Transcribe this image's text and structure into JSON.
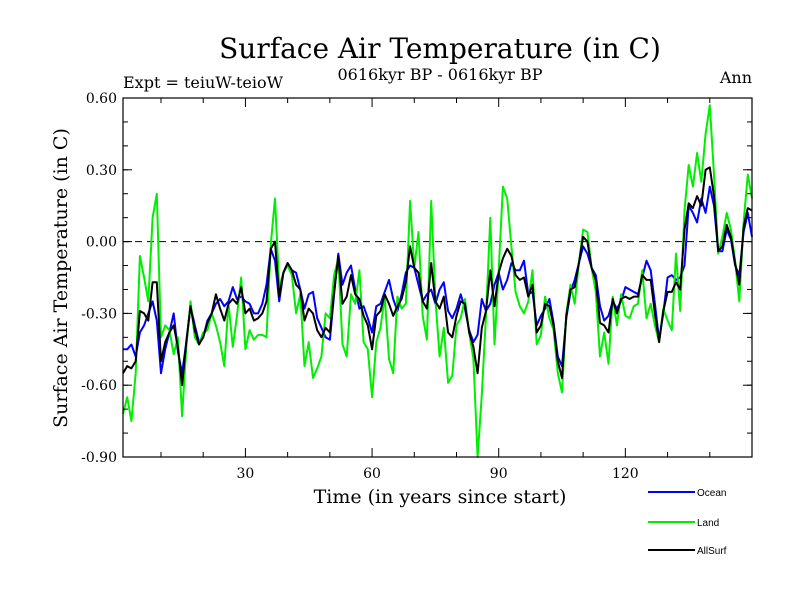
{
  "chart_data": {
    "type": "line",
    "title": "Surface Air Temperature (in C)",
    "subtitle_left": "Expt = teiuW-teioW",
    "subtitle_center": "0616kyr BP - 0616kyr BP",
    "subtitle_right": "Ann",
    "xlabel": "Time (in years since start)",
    "ylabel": "Surface Air Temperature (in C)",
    "xlim": [
      1,
      150
    ],
    "ylim": [
      -0.9,
      0.6
    ],
    "xticks": [
      30,
      60,
      90,
      120
    ],
    "yticks": [
      -0.9,
      -0.6,
      -0.3,
      0.0,
      0.3,
      0.6
    ],
    "ytick_labels": [
      "-0.90",
      "-0.60",
      "-0.30",
      "0.00",
      "0.30",
      "0.60"
    ],
    "reference_line": 0.0,
    "x": [
      1,
      2,
      3,
      4,
      5,
      6,
      7,
      8,
      9,
      10,
      11,
      12,
      13,
      14,
      15,
      16,
      17,
      18,
      19,
      20,
      21,
      22,
      23,
      24,
      25,
      26,
      27,
      28,
      29,
      30,
      31,
      32,
      33,
      34,
      35,
      36,
      37,
      38,
      39,
      40,
      41,
      42,
      43,
      44,
      45,
      46,
      47,
      48,
      49,
      50,
      51,
      52,
      53,
      54,
      55,
      56,
      57,
      58,
      59,
      60,
      61,
      62,
      63,
      64,
      65,
      66,
      67,
      68,
      69,
      70,
      71,
      72,
      73,
      74,
      75,
      76,
      77,
      78,
      79,
      80,
      81,
      82,
      83,
      84,
      85,
      86,
      87,
      88,
      89,
      90,
      91,
      92,
      93,
      94,
      95,
      96,
      97,
      98,
      99,
      100,
      101,
      102,
      103,
      104,
      105,
      106,
      107,
      108,
      109,
      110,
      111,
      112,
      113,
      114,
      115,
      116,
      117,
      118,
      119,
      120,
      121,
      122,
      123,
      124,
      125,
      126,
      127,
      128,
      129,
      130,
      131,
      132,
      133,
      134,
      135,
      136,
      137,
      138,
      139,
      140,
      141,
      142,
      143,
      144,
      145,
      146,
      147,
      148,
      149,
      150
    ],
    "series": [
      {
        "name": "Ocean",
        "color": "#0000ff",
        "values": [
          -0.45,
          -0.45,
          -0.43,
          -0.48,
          -0.38,
          -0.35,
          -0.3,
          -0.25,
          -0.33,
          -0.55,
          -0.45,
          -0.38,
          -0.3,
          -0.46,
          -0.55,
          -0.42,
          -0.27,
          -0.35,
          -0.42,
          -0.4,
          -0.33,
          -0.3,
          -0.26,
          -0.24,
          -0.27,
          -0.25,
          -0.19,
          -0.24,
          -0.23,
          -0.25,
          -0.26,
          -0.3,
          -0.3,
          -0.26,
          -0.18,
          -0.03,
          -0.08,
          -0.25,
          -0.13,
          -0.09,
          -0.12,
          -0.13,
          -0.2,
          -0.28,
          -0.22,
          -0.21,
          -0.32,
          -0.36,
          -0.4,
          -0.41,
          -0.22,
          -0.05,
          -0.18,
          -0.13,
          -0.1,
          -0.2,
          -0.28,
          -0.27,
          -0.32,
          -0.38,
          -0.27,
          -0.26,
          -0.21,
          -0.16,
          -0.24,
          -0.29,
          -0.22,
          -0.13,
          -0.1,
          -0.11,
          -0.18,
          -0.25,
          -0.22,
          -0.2,
          -0.26,
          -0.2,
          -0.17,
          -0.29,
          -0.32,
          -0.28,
          -0.22,
          -0.28,
          -0.37,
          -0.42,
          -0.39,
          -0.24,
          -0.29,
          -0.26,
          -0.18,
          -0.13,
          -0.2,
          -0.16,
          -0.09,
          -0.12,
          -0.12,
          -0.08,
          -0.22,
          -0.21,
          -0.35,
          -0.31,
          -0.28,
          -0.24,
          -0.34,
          -0.48,
          -0.52,
          -0.32,
          -0.21,
          -0.16,
          -0.09,
          -0.02,
          -0.05,
          -0.11,
          -0.14,
          -0.27,
          -0.33,
          -0.31,
          -0.25,
          -0.28,
          -0.25,
          -0.19,
          -0.2,
          -0.21,
          -0.22,
          -0.15,
          -0.08,
          -0.12,
          -0.26,
          -0.41,
          -0.3,
          -0.15,
          -0.14,
          -0.16,
          -0.15,
          -0.1,
          0.15,
          0.12,
          0.08,
          0.18,
          0.12,
          0.23,
          0.15,
          -0.04,
          -0.04,
          0.05,
          0.01,
          -0.1,
          -0.14,
          0.04,
          0.12,
          0.02
        ]
      },
      {
        "name": "Land",
        "color": "#00ee00",
        "values": [
          -0.72,
          -0.65,
          -0.75,
          -0.55,
          -0.06,
          -0.15,
          -0.25,
          0.1,
          0.2,
          -0.4,
          -0.35,
          -0.37,
          -0.47,
          -0.4,
          -0.73,
          -0.44,
          -0.25,
          -0.4,
          -0.43,
          -0.38,
          -0.37,
          -0.3,
          -0.35,
          -0.42,
          -0.52,
          -0.26,
          -0.44,
          -0.31,
          -0.15,
          -0.45,
          -0.37,
          -0.41,
          -0.39,
          -0.39,
          -0.4,
          -0.01,
          0.18,
          -0.19,
          -0.13,
          -0.1,
          -0.14,
          -0.3,
          -0.22,
          -0.52,
          -0.42,
          -0.57,
          -0.53,
          -0.48,
          -0.3,
          -0.32,
          -0.14,
          -0.07,
          -0.43,
          -0.48,
          -0.22,
          -0.26,
          -0.12,
          -0.42,
          -0.45,
          -0.65,
          -0.42,
          -0.36,
          -0.23,
          -0.49,
          -0.55,
          -0.23,
          -0.28,
          -0.26,
          0.17,
          -0.11,
          0.04,
          -0.31,
          -0.41,
          0.17,
          -0.24,
          -0.48,
          -0.36,
          -0.59,
          -0.56,
          -0.35,
          -0.32,
          -0.24,
          -0.38,
          -0.49,
          -0.9,
          -0.64,
          -0.31,
          0.1,
          -0.43,
          -0.12,
          0.23,
          0.18,
          -0.02,
          -0.21,
          -0.27,
          -0.3,
          -0.25,
          -0.12,
          -0.43,
          -0.39,
          -0.23,
          -0.32,
          -0.37,
          -0.55,
          -0.63,
          -0.3,
          -0.18,
          -0.26,
          -0.09,
          0.05,
          0.04,
          -0.11,
          -0.21,
          -0.48,
          -0.38,
          -0.51,
          -0.23,
          -0.35,
          -0.22,
          -0.31,
          -0.32,
          -0.27,
          -0.26,
          -0.12,
          -0.32,
          -0.26,
          -0.35,
          -0.42,
          -0.28,
          -0.33,
          -0.37,
          -0.05,
          -0.29,
          0.13,
          0.32,
          0.23,
          0.37,
          0.25,
          0.45,
          0.57,
          0.28,
          -0.05,
          0.02,
          0.12,
          0.05,
          -0.08,
          -0.25,
          0.08,
          0.28,
          0.18
        ]
      },
      {
        "name": "AllSurf",
        "color": "#000000",
        "values": [
          -0.55,
          -0.52,
          -0.53,
          -0.5,
          -0.29,
          -0.3,
          -0.33,
          -0.17,
          -0.17,
          -0.5,
          -0.42,
          -0.38,
          -0.35,
          -0.44,
          -0.6,
          -0.42,
          -0.27,
          -0.37,
          -0.43,
          -0.4,
          -0.34,
          -0.3,
          -0.22,
          -0.28,
          -0.33,
          -0.26,
          -0.24,
          -0.26,
          -0.19,
          -0.3,
          -0.28,
          -0.33,
          -0.32,
          -0.3,
          -0.25,
          -0.03,
          0.0,
          -0.23,
          -0.13,
          -0.09,
          -0.12,
          -0.18,
          -0.2,
          -0.33,
          -0.28,
          -0.3,
          -0.37,
          -0.4,
          -0.36,
          -0.38,
          -0.21,
          -0.06,
          -0.26,
          -0.23,
          -0.14,
          -0.22,
          -0.24,
          -0.31,
          -0.35,
          -0.45,
          -0.31,
          -0.29,
          -0.22,
          -0.26,
          -0.31,
          -0.27,
          -0.24,
          -0.17,
          -0.02,
          -0.11,
          -0.13,
          -0.25,
          -0.28,
          -0.09,
          -0.25,
          -0.28,
          -0.23,
          -0.38,
          -0.4,
          -0.31,
          -0.25,
          -0.26,
          -0.38,
          -0.44,
          -0.55,
          -0.36,
          -0.29,
          -0.12,
          -0.27,
          -0.13,
          -0.07,
          -0.03,
          -0.06,
          -0.14,
          -0.16,
          -0.15,
          -0.23,
          -0.18,
          -0.38,
          -0.35,
          -0.26,
          -0.27,
          -0.35,
          -0.5,
          -0.57,
          -0.31,
          -0.2,
          -0.19,
          -0.09,
          0.02,
          0.0,
          -0.11,
          -0.16,
          -0.34,
          -0.35,
          -0.38,
          -0.24,
          -0.3,
          -0.24,
          -0.23,
          -0.24,
          -0.23,
          -0.23,
          -0.14,
          -0.16,
          -0.16,
          -0.3,
          -0.42,
          -0.29,
          -0.21,
          -0.21,
          -0.17,
          -0.2,
          0.05,
          0.16,
          0.14,
          0.19,
          0.15,
          0.3,
          0.31,
          0.19,
          -0.04,
          -0.02,
          0.07,
          0.02,
          -0.09,
          -0.18,
          0.06,
          0.14,
          0.13
        ]
      }
    ],
    "legend": [
      "Ocean",
      "Land",
      "AllSurf"
    ],
    "legend_position": "bottom-right"
  }
}
